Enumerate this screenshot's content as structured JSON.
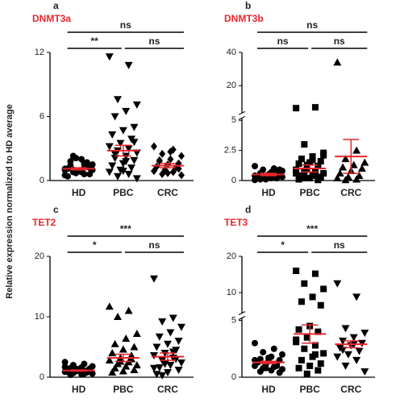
{
  "ylabel": "Relative expression normalized to HD average",
  "chart_data": [
    {
      "type": "strip",
      "panel_label": "a",
      "title": "DNMT3a",
      "categories": [
        "HD",
        "PBC",
        "CRC"
      ],
      "markers": [
        "circle",
        "triangle-down",
        "diamond"
      ],
      "points": [
        [
          1.0,
          1.2,
          0.8,
          1.5,
          2.0,
          1.8,
          0.6,
          0.9,
          1.1,
          1.3,
          0.7,
          0.5,
          1.6,
          2.3,
          1.0,
          0.8,
          1.4,
          1.2,
          0.9,
          0.4,
          1.7,
          2.1,
          1.1,
          0.6,
          1.0
        ],
        [
          11.6,
          10.8,
          7.6,
          7.1,
          6.5,
          6.0,
          5.0,
          4.7,
          4.3,
          3.9,
          3.5,
          3.2,
          3.0,
          2.8,
          2.6,
          2.3,
          2.1,
          1.9,
          1.6,
          1.4,
          1.2,
          1.0,
          0.8,
          0.6,
          0.4,
          0.2,
          1.8,
          2.5,
          3.6,
          0.9
        ],
        [
          3.2,
          2.9,
          2.5,
          2.3,
          2.0,
          1.8,
          1.6,
          1.5,
          1.3,
          1.2,
          1.0,
          0.9,
          0.8,
          0.6,
          0.5,
          2.7,
          1.9,
          1.1,
          0.7
        ]
      ],
      "means": [
        1.1,
        2.8,
        1.4
      ],
      "sems": [
        0.1,
        0.5,
        0.2
      ],
      "color": "#000000",
      "mean_color": "#e8262b",
      "ylim": [
        0,
        12
      ],
      "yticks": [
        0,
        6,
        12
      ],
      "axis_break": false,
      "comparisons": [
        {
          "from": "HD",
          "to": "CRC",
          "label": "ns"
        },
        {
          "from": "HD",
          "to": "PBC",
          "label": "**"
        },
        {
          "from": "PBC",
          "to": "CRC",
          "label": "ns"
        }
      ]
    },
    {
      "type": "strip",
      "panel_label": "b",
      "title": "DNMT3b",
      "categories": [
        "HD",
        "PBC",
        "CRC"
      ],
      "markers": [
        "circle",
        "square",
        "triangle-up"
      ],
      "points": [
        [
          1.2,
          1.0,
          0.9,
          0.8,
          0.7,
          0.6,
          0.5,
          0.4,
          0.3,
          0.2,
          0.1,
          0.05,
          0.6,
          0.4,
          0.3,
          0.2,
          0.1,
          0.9,
          0.5,
          0.3,
          0.2,
          0.15,
          0.4,
          0.7
        ],
        [
          6.5,
          7.0,
          3.0,
          2.3,
          2.0,
          1.8,
          1.6,
          1.5,
          1.4,
          1.2,
          1.0,
          0.9,
          0.8,
          0.7,
          0.6,
          0.5,
          0.4,
          0.3,
          0.2,
          0.1,
          0.05,
          1.3,
          0.6,
          0.4,
          0.2,
          2.1,
          1.7
        ],
        [
          34.0,
          2.5,
          1.8,
          1.5,
          1.3,
          1.1,
          1.0,
          0.8,
          0.6,
          0.4,
          0.3,
          0.2,
          0.1,
          0.05
        ]
      ],
      "means": [
        0.5,
        1.0,
        2.0
      ],
      "sems": [
        0.1,
        0.3,
        1.4
      ],
      "color": "#000000",
      "mean_color": "#e8262b",
      "ylim": [
        0,
        5
      ],
      "yticks": [
        0,
        2.5,
        5
      ],
      "axis_break": true,
      "ylim_upper": [
        5,
        40
      ],
      "yticks_upper": [
        20,
        40
      ],
      "comparisons": [
        {
          "from": "HD",
          "to": "CRC",
          "label": "ns"
        },
        {
          "from": "HD",
          "to": "PBC",
          "label": "ns"
        },
        {
          "from": "PBC",
          "to": "CRC",
          "label": "ns"
        }
      ]
    },
    {
      "type": "strip",
      "panel_label": "c",
      "title": "TET2",
      "categories": [
        "HD",
        "PBC",
        "CRC"
      ],
      "markers": [
        "circle",
        "triangle-up",
        "triangle-down"
      ],
      "points": [
        [
          2.5,
          2.2,
          2.0,
          1.8,
          1.6,
          1.5,
          1.4,
          1.3,
          1.2,
          1.1,
          1.0,
          0.9,
          0.8,
          0.7,
          0.6,
          0.5,
          0.4,
          1.0,
          1.2,
          0.9,
          0.8,
          1.4,
          1.7,
          0.6,
          1.1
        ],
        [
          11.7,
          11.0,
          10.0,
          7.2,
          6.4,
          5.5,
          5.0,
          4.6,
          4.0,
          3.6,
          3.2,
          2.8,
          2.5,
          2.2,
          2.0,
          1.8,
          1.5,
          1.2,
          1.0,
          0.8,
          3.0,
          2.6
        ],
        [
          16.3,
          9.8,
          9.2,
          8.3,
          7.4,
          6.7,
          6.0,
          5.5,
          5.0,
          4.5,
          4.0,
          3.6,
          3.2,
          2.8,
          2.4,
          2.0,
          1.6,
          1.2,
          0.8,
          0.5,
          3.0,
          2.2,
          1.5,
          4.2,
          0.3
        ]
      ],
      "means": [
        1.1,
        3.2,
        3.4
      ],
      "sems": [
        0.1,
        0.6,
        0.6
      ],
      "color": "#000000",
      "mean_color": "#e8262b",
      "ylim": [
        0,
        20
      ],
      "yticks": [
        0,
        10,
        20
      ],
      "axis_break": false,
      "comparisons": [
        {
          "from": "HD",
          "to": "CRC",
          "label": "***"
        },
        {
          "from": "HD",
          "to": "PBC",
          "label": "*"
        },
        {
          "from": "PBC",
          "to": "CRC",
          "label": "ns"
        }
      ]
    },
    {
      "type": "strip",
      "panel_label": "d",
      "title": "TET3",
      "categories": [
        "HD",
        "PBC",
        "CRC"
      ],
      "markers": [
        "circle",
        "square",
        "triangle-down"
      ],
      "points": [
        [
          3.0,
          2.5,
          2.2,
          2.0,
          1.8,
          1.6,
          1.5,
          1.4,
          1.3,
          1.2,
          1.1,
          1.0,
          0.9,
          0.8,
          0.7,
          0.6,
          0.5,
          0.4,
          1.7,
          1.3,
          1.0,
          0.8,
          1.5
        ],
        [
          16.0,
          15.2,
          12.5,
          11.0,
          8.8,
          7.5,
          6.5,
          4.5,
          4.2,
          4.0,
          3.5,
          3.1,
          2.8,
          2.5,
          2.1,
          1.8,
          1.5,
          1.2,
          1.0,
          0.8,
          0.6,
          0.3,
          3.3,
          2.0
        ],
        [
          12.5,
          8.8,
          4.3,
          3.9,
          3.5,
          3.2,
          3.0,
          2.8,
          2.6,
          2.3,
          2.0,
          1.8,
          1.5,
          1.0,
          0.5,
          2.9,
          2.4
        ]
      ],
      "means": [
        1.3,
        3.8,
        2.9
      ],
      "sems": [
        0.1,
        0.8,
        0.3
      ],
      "color": "#000000",
      "mean_color": "#e8262b",
      "ylim": [
        0,
        5
      ],
      "yticks": [
        0,
        5
      ],
      "axis_break": true,
      "ylim_upper": [
        5,
        20
      ],
      "yticks_upper": [
        10,
        20
      ],
      "comparisons": [
        {
          "from": "HD",
          "to": "CRC",
          "label": "***"
        },
        {
          "from": "HD",
          "to": "PBC",
          "label": "*"
        },
        {
          "from": "PBC",
          "to": "CRC",
          "label": "ns"
        }
      ]
    }
  ]
}
